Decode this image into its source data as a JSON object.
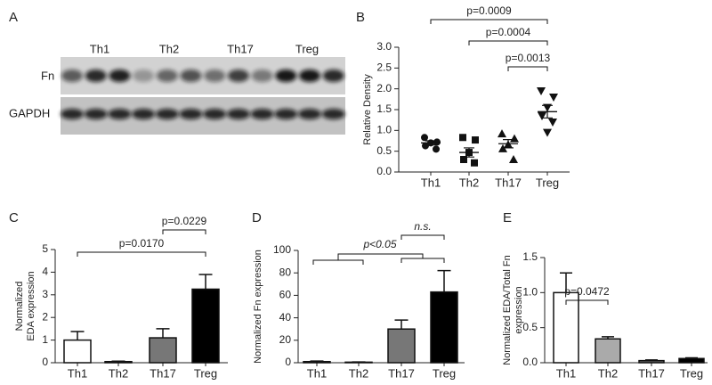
{
  "panel_a": {
    "label": "A",
    "lanes": [
      "Th1",
      "Th2",
      "Th17",
      "Treg"
    ],
    "rows": [
      "Fn",
      "GAPDH"
    ]
  },
  "chart_data": [
    {
      "type": "dotplot",
      "panel": "B",
      "ylabel": [
        "Relative Density"
      ],
      "categories": [
        "Th1",
        "Th2",
        "Th17",
        "Treg"
      ],
      "values": [
        [
          0.83,
          0.72,
          0.7,
          0.63,
          0.55
        ],
        [
          0.83,
          0.77,
          0.47,
          0.3,
          0.22
        ],
        [
          0.92,
          0.8,
          0.66,
          0.56,
          0.3
        ],
        [
          1.95,
          1.8,
          1.55,
          1.35,
          1.2,
          0.95
        ]
      ],
      "means": [
        0.7,
        0.47,
        0.68,
        1.45
      ],
      "errors": [
        0.05,
        0.11,
        0.1,
        0.15
      ],
      "markers": [
        "circle",
        "square",
        "triangle",
        "triangle-down"
      ],
      "color": "#111111",
      "ylim": [
        0,
        3
      ],
      "yticks": [
        {
          "value": 0,
          "label": "0.0"
        },
        0.5,
        {
          "value": 1,
          "label": "1.0"
        },
        1.5,
        {
          "value": 2,
          "label": "2.0"
        },
        2.5,
        {
          "value": 3,
          "label": "3.0"
        }
      ],
      "annotations": [
        "p=0.0009",
        "p=0.0004",
        "p=0.0013"
      ]
    },
    {
      "type": "bar",
      "panel": "C",
      "ylabel": [
        "Normalized",
        "EDA expression"
      ],
      "categories": [
        "Th1",
        "Th2",
        "Th17",
        "Treg"
      ],
      "values": [
        1.0,
        0.05,
        1.1,
        3.25
      ],
      "errors": [
        0.38,
        0.02,
        0.4,
        0.65
      ],
      "colors": [
        "#ffffff",
        "#ffffff",
        "#777777",
        "#000000"
      ],
      "ylim": [
        0,
        5
      ],
      "yticks": [
        0,
        1,
        2,
        3,
        4,
        5
      ],
      "annotations": [
        "p=0.0170",
        "p=0.0229"
      ]
    },
    {
      "type": "bar",
      "panel": "D",
      "ylabel": [
        "Normalized Fn expression"
      ],
      "categories": [
        "Th1",
        "Th2",
        "Th17",
        "Treg"
      ],
      "values": [
        1,
        0.5,
        30,
        63
      ],
      "errors": [
        0.5,
        0.2,
        8,
        19
      ],
      "colors": [
        "#ffffff",
        "#ffffff",
        "#777777",
        "#000000"
      ],
      "ylim": [
        0,
        100
      ],
      "yticks": [
        0,
        20,
        40,
        60,
        80,
        100
      ],
      "annotations": [
        "p<0.05",
        "n.s."
      ]
    },
    {
      "type": "bar",
      "panel": "E",
      "ylabel": [
        "Normalized EDA/Total Fn",
        "expression"
      ],
      "categories": [
        "Th1",
        "Th2",
        "Th17",
        "Treg"
      ],
      "values": [
        1.0,
        0.34,
        0.03,
        0.06
      ],
      "errors": [
        0.28,
        0.03,
        0.01,
        0.01
      ],
      "colors": [
        "#ffffff",
        "#aaaaaa",
        "#666666",
        "#000000"
      ],
      "ylim": [
        0,
        1.5
      ],
      "yticks": [
        {
          "value": 0,
          "label": "0.0"
        },
        0.5,
        {
          "value": 1,
          "label": "1.0"
        },
        1.5
      ],
      "annotations": [
        "p=0.0472"
      ]
    }
  ]
}
